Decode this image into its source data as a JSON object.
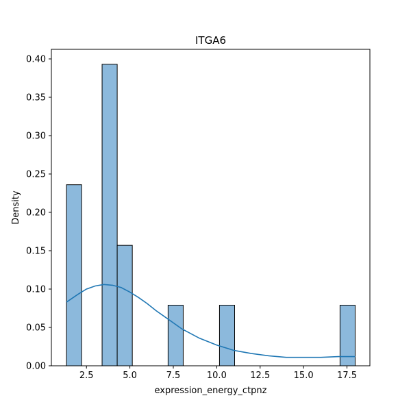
{
  "chart_data": {
    "type": "bar",
    "title": "ITGA6",
    "xlabel": "expression_energy_ctpnz",
    "ylabel": "Density",
    "xlim": [
      0.48,
      18.82
    ],
    "ylim": [
      0,
      0.4125
    ],
    "xticks": [
      2.5,
      5.0,
      7.5,
      10.0,
      12.5,
      15.0,
      17.5
    ],
    "xtick_labels": [
      "2.5",
      "5.0",
      "7.5",
      "10.0",
      "12.5",
      "15.0",
      "17.5"
    ],
    "yticks": [
      0.0,
      0.05,
      0.1,
      0.15,
      0.2,
      0.25,
      0.3,
      0.35,
      0.4
    ],
    "ytick_labels": [
      "0.00",
      "0.05",
      "0.10",
      "0.15",
      "0.20",
      "0.25",
      "0.30",
      "0.35",
      "0.40"
    ],
    "bins": [
      {
        "x0": 1.35,
        "x1": 2.22,
        "value": 0.236
      },
      {
        "x0": 3.4,
        "x1": 4.27,
        "value": 0.393
      },
      {
        "x0": 4.27,
        "x1": 5.14,
        "value": 0.157
      },
      {
        "x0": 7.2,
        "x1": 8.07,
        "value": 0.079
      },
      {
        "x0": 10.16,
        "x1": 11.03,
        "value": 0.079
      },
      {
        "x0": 17.1,
        "x1": 17.97,
        "value": 0.079
      }
    ],
    "kde": {
      "x": [
        1.35,
        2.0,
        2.5,
        3.0,
        3.5,
        4.0,
        4.5,
        5.0,
        5.5,
        6.0,
        6.5,
        7.0,
        7.5,
        8.0,
        9.0,
        10.0,
        11.0,
        12.0,
        13.0,
        14.0,
        15.0,
        16.0,
        17.0,
        17.97
      ],
      "y": [
        0.083,
        0.093,
        0.1,
        0.104,
        0.106,
        0.105,
        0.102,
        0.096,
        0.089,
        0.081,
        0.072,
        0.064,
        0.056,
        0.048,
        0.036,
        0.027,
        0.02,
        0.016,
        0.013,
        0.011,
        0.011,
        0.011,
        0.012,
        0.012
      ]
    },
    "grid": false,
    "colors": {
      "bar_fill": "#8cb9dc",
      "bar_edge": "#000000",
      "kde_line": "#1f77b4"
    }
  }
}
